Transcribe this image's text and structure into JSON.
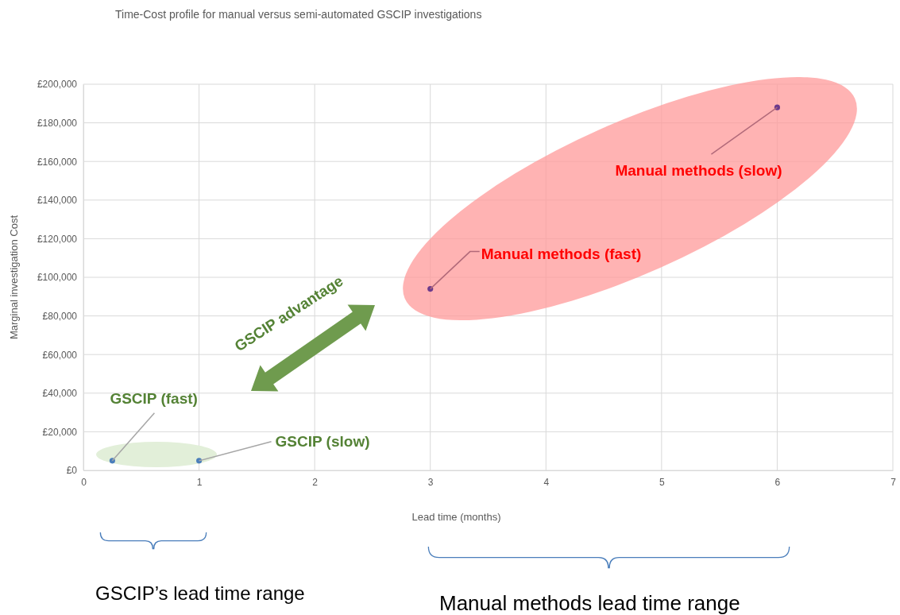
{
  "chart_data": {
    "type": "scatter",
    "title": "Time-Cost profile for manual versus semi-automated GSCIP investigations",
    "xlabel": "Lead time (months)",
    "ylabel": "Marginal investigation Cost",
    "x": [
      0.25,
      1,
      3,
      6
    ],
    "values": [
      5000,
      5000,
      94000,
      188000
    ],
    "colors": [
      "#4a7ebb",
      "#4a7ebb",
      "#6b3a8c",
      "#6b3a8c"
    ],
    "marker": "circle",
    "grid": true,
    "legend": false,
    "xlim": [
      0,
      7
    ],
    "xticks": [
      0,
      1,
      2,
      3,
      4,
      5,
      6,
      7
    ],
    "ylim": [
      0,
      200000
    ],
    "yticks": [
      {
        "value": 0,
        "label": "£0"
      },
      {
        "value": 20000,
        "label": "£20,000"
      },
      {
        "value": 40000,
        "label": "£40,000"
      },
      {
        "value": 60000,
        "label": "£60,000"
      },
      {
        "value": 80000,
        "label": "£80,000"
      },
      {
        "value": 100000,
        "label": "£100,000"
      },
      {
        "value": 120000,
        "label": "£120,000"
      },
      {
        "value": 140000,
        "label": "£140,000"
      },
      {
        "value": 160000,
        "label": "£160,000"
      },
      {
        "value": 180000,
        "label": "£180,000"
      },
      {
        "value": 200000,
        "label": "£200,000"
      }
    ],
    "annotations": [
      {
        "text": "GSCIP (fast)",
        "x": 0.25,
        "y": 5000
      },
      {
        "text": "GSCIP (slow)",
        "x": 1,
        "y": 5000
      },
      {
        "text": "Manual methods (fast)",
        "x": 3,
        "y": 94000
      },
      {
        "text": "Manual methods (slow)",
        "x": 6,
        "y": 188000
      },
      "GSCIP advantage",
      "GSCIP’s lead time range",
      "Manual methods lead time range"
    ]
  }
}
